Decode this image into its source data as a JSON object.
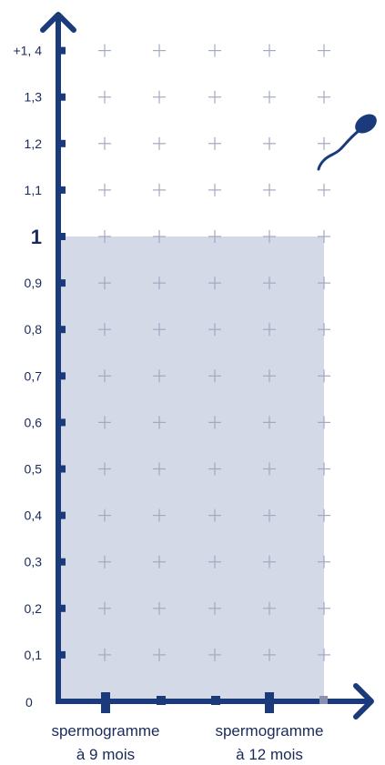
{
  "chart_data": {
    "type": "area",
    "y_tick_labels": [
      "0",
      "0,1",
      "0,2",
      "0,3",
      "0,4",
      "0,5",
      "0,6",
      "0,7",
      "0,8",
      "0,9",
      "1",
      "1,1",
      "1,2",
      "1,3",
      "+1, 4"
    ],
    "y_tick_values": [
      0,
      0.1,
      0.2,
      0.3,
      0.4,
      0.5,
      0.6,
      0.7,
      0.8,
      0.9,
      1,
      1.1,
      1.2,
      1.3,
      1.4
    ],
    "emphasized_tick": "1",
    "categories": [
      {
        "line1": "spermogramme",
        "line2": "à 9 mois"
      },
      {
        "line1": "spermogramme",
        "line2": "à 12 mois"
      }
    ],
    "region_value": 1,
    "ylim": [
      0,
      1.4
    ],
    "grid": "plus-markers",
    "icon": "sperm-icon",
    "colors": {
      "axis": "#1a3a7c",
      "fill": "#d3d9e6",
      "grid": "#a4a9c0",
      "text": "#1a2a5a"
    }
  }
}
